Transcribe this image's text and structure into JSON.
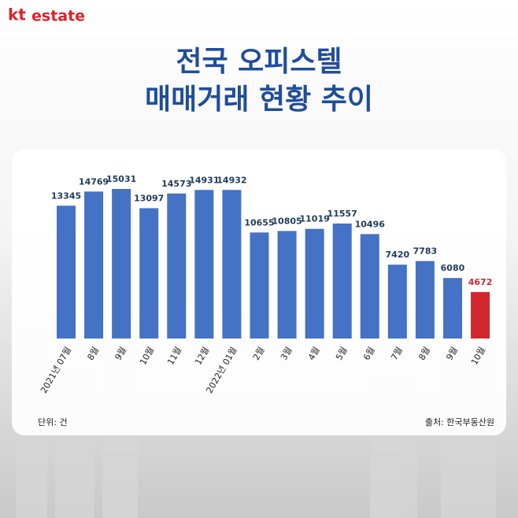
{
  "brand": {
    "mark": "kt",
    "name": "estate"
  },
  "chart_data": {
    "type": "bar",
    "title": [
      "전국 오피스텔",
      "매매거래 현황 추이"
    ],
    "categories": [
      "2021년 07월",
      "8월",
      "9월",
      "10월",
      "11월",
      "12월",
      "2022년 01월",
      "2월",
      "3월",
      "4월",
      "5월",
      "6월",
      "7월",
      "8월",
      "9월",
      "10월"
    ],
    "values": [
      13345,
      14769,
      15031,
      13097,
      14573,
      14931,
      14932,
      10655,
      10805,
      11019,
      11557,
      10496,
      7420,
      7783,
      6080,
      4672
    ],
    "colors": [
      "#4472c4",
      "#4472c4",
      "#4472c4",
      "#4472c4",
      "#4472c4",
      "#4472c4",
      "#4472c4",
      "#4472c4",
      "#4472c4",
      "#4472c4",
      "#4472c4",
      "#4472c4",
      "#4472c4",
      "#4472c4",
      "#4472c4",
      "#d0282e"
    ],
    "value_label_colors": [
      "#1f3a5f",
      "#1f3a5f",
      "#1f3a5f",
      "#1f3a5f",
      "#1f3a5f",
      "#1f3a5f",
      "#1f3a5f",
      "#1f3a5f",
      "#1f3a5f",
      "#1f3a5f",
      "#1f3a5f",
      "#1f3a5f",
      "#1f3a5f",
      "#1f3a5f",
      "#1f3a5f",
      "#d0282e"
    ],
    "unit_note": "단위: 건",
    "source": "출처: 한국부동산원"
  }
}
